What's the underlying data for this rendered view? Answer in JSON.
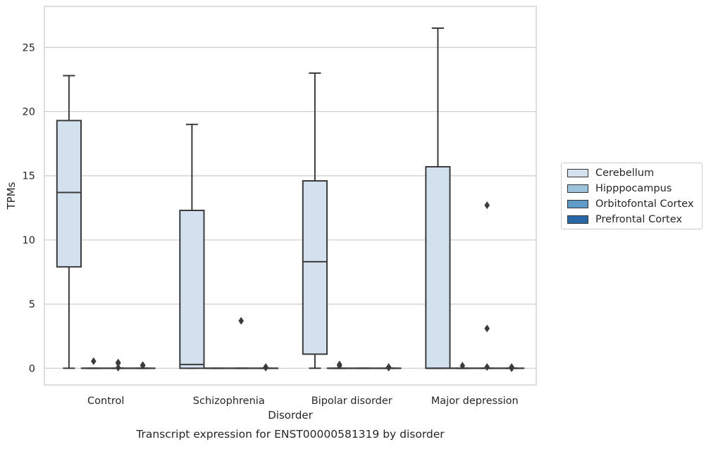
{
  "chart_data": {
    "type": "box",
    "title": "",
    "caption": "Transcript expression for ENST00000581319 by disorder",
    "xlabel": "Disorder",
    "ylabel": "TPMs",
    "categories": [
      "Control",
      "Schizophrenia",
      "Bipolar disorder",
      "Major depression"
    ],
    "ylim": [
      -1.3,
      28.2
    ],
    "yticks": [
      0,
      5,
      10,
      15,
      20,
      25
    ],
    "grid": "horizontal",
    "legend_position": "right",
    "series": [
      {
        "name": "Cerebellum",
        "color": "#d3e1ef",
        "boxes": [
          {
            "whislo": 0,
            "q1": 7.9,
            "med": 13.7,
            "q3": 19.3,
            "whishi": 22.8,
            "fliers": []
          },
          {
            "whislo": 0,
            "q1": 0,
            "med": 0.3,
            "q3": 12.3,
            "whishi": 19.0,
            "fliers": []
          },
          {
            "whislo": 0,
            "q1": 1.1,
            "med": 8.3,
            "q3": 14.6,
            "whishi": 23.0,
            "fliers": []
          },
          {
            "whislo": 0,
            "q1": 0,
            "med": 0,
            "q3": 15.7,
            "whishi": 26.5,
            "fliers": []
          }
        ]
      },
      {
        "name": "Hipppocampus",
        "color": "#9dc3dc",
        "boxes": [
          {
            "whislo": 0,
            "q1": 0,
            "med": 0,
            "q3": 0,
            "whishi": 0,
            "fliers": [
              0.55
            ]
          },
          {
            "whislo": 0,
            "q1": 0,
            "med": 0,
            "q3": 0,
            "whishi": 0,
            "fliers": []
          },
          {
            "whislo": 0,
            "q1": 0,
            "med": 0,
            "q3": 0,
            "whishi": 0,
            "fliers": [
              0.2,
              0.3
            ]
          },
          {
            "whislo": 0,
            "q1": 0,
            "med": 0,
            "q3": 0,
            "whishi": 0,
            "fliers": [
              0.2
            ]
          }
        ]
      },
      {
        "name": "Orbitofontal Cortex",
        "color": "#5e9ac8",
        "boxes": [
          {
            "whislo": 0,
            "q1": 0,
            "med": 0,
            "q3": 0,
            "whishi": 0,
            "fliers": [
              0.05,
              0.4,
              0.45
            ]
          },
          {
            "whislo": 0,
            "q1": 0,
            "med": 0,
            "q3": 0,
            "whishi": 0,
            "fliers": [
              3.7
            ]
          },
          {
            "whislo": 0,
            "q1": 0,
            "med": 0,
            "q3": 0,
            "whishi": 0,
            "fliers": []
          },
          {
            "whislo": 0,
            "q1": 0,
            "med": 0,
            "q3": 0,
            "whishi": 0,
            "fliers": [
              0.1,
              3.1,
              12.7
            ]
          }
        ]
      },
      {
        "name": "Prefrontal Cortex",
        "color": "#2a67a6",
        "boxes": [
          {
            "whislo": 0,
            "q1": 0,
            "med": 0,
            "q3": 0,
            "whishi": 0,
            "fliers": [
              0.2,
              0.25
            ]
          },
          {
            "whislo": 0,
            "q1": 0,
            "med": 0,
            "q3": 0,
            "whishi": 0,
            "fliers": [
              0.05,
              0.1
            ]
          },
          {
            "whislo": 0,
            "q1": 0,
            "med": 0,
            "q3": 0,
            "whishi": 0,
            "fliers": [
              0.05,
              0.1
            ]
          },
          {
            "whislo": 0,
            "q1": 0,
            "med": 0,
            "q3": 0,
            "whishi": 0,
            "fliers": [
              0.0,
              0.1
            ]
          }
        ]
      }
    ]
  }
}
